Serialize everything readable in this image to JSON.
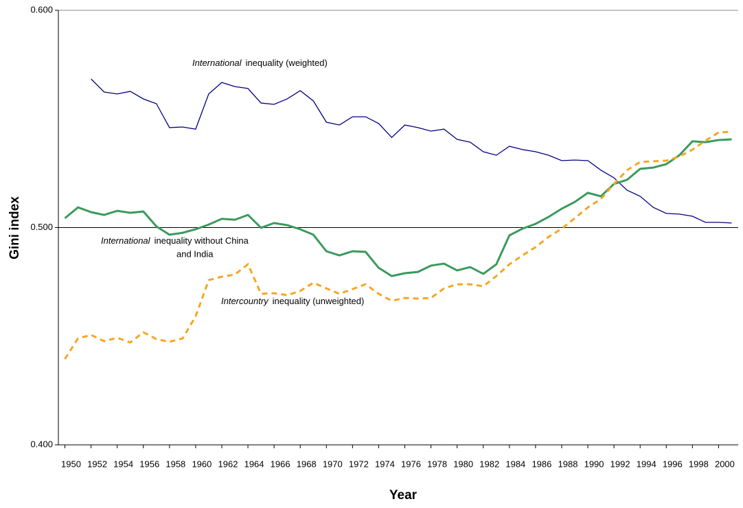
{
  "chart_data": {
    "type": "line",
    "ylabel": "Gini index",
    "xlabel": "Year",
    "x": [
      1950,
      1951,
      1952,
      1953,
      1954,
      1955,
      1956,
      1957,
      1958,
      1959,
      1960,
      1961,
      1962,
      1963,
      1964,
      1965,
      1966,
      1967,
      1968,
      1969,
      1970,
      1971,
      1972,
      1973,
      1974,
      1975,
      1976,
      1977,
      1978,
      1979,
      1980,
      1981,
      1982,
      1983,
      1984,
      1985,
      1986,
      1987,
      1988,
      1989,
      1990,
      1991,
      1992,
      1993,
      1994,
      1995,
      1996,
      1997,
      1998,
      1999,
      2000,
      2001
    ],
    "xlim": [
      1949.5,
      2001.5
    ],
    "xticks": [
      1950,
      1952,
      1954,
      1956,
      1958,
      1960,
      1962,
      1964,
      1966,
      1968,
      1970,
      1972,
      1974,
      1976,
      1978,
      1980,
      1982,
      1984,
      1986,
      1988,
      1990,
      1992,
      1994,
      1996,
      1998,
      2000
    ],
    "ylim": [
      0.4,
      0.6
    ],
    "yticks": [
      {
        "value": 0.4,
        "label": "0.400"
      },
      {
        "value": 0.5,
        "label": "0.500"
      },
      {
        "value": 0.6,
        "label": "0.600"
      }
    ],
    "grid": true,
    "series": [
      {
        "color": "#000080",
        "width": 1.3,
        "dashed": false,
        "values": [
          null,
          null,
          0.5684,
          0.5624,
          0.5615,
          0.5627,
          0.5592,
          0.557,
          0.546,
          0.5463,
          0.5453,
          0.5615,
          0.5668,
          0.5649,
          0.564,
          0.5573,
          0.5567,
          0.5592,
          0.563,
          0.5583,
          0.5485,
          0.5472,
          0.551,
          0.551,
          0.5479,
          0.5415,
          0.5472,
          0.546,
          0.5444,
          0.5453,
          0.5406,
          0.5393,
          0.5349,
          0.5333,
          0.5374,
          0.5359,
          0.5349,
          0.5333,
          0.5308,
          0.5311,
          0.5308,
          0.5264,
          0.5229,
          0.5172,
          0.5144,
          0.5093,
          0.5065,
          0.5062,
          0.5052,
          0.5024,
          0.5024,
          0.5021
        ]
      },
      {
        "color": "#3a9a5c",
        "width": 3,
        "dashed": false,
        "values": [
          0.5043,
          0.5093,
          0.5071,
          0.5058,
          0.5077,
          0.5068,
          0.5074,
          0.5005,
          0.4967,
          0.4976,
          0.4992,
          0.5014,
          0.504,
          0.5036,
          0.5058,
          0.4999,
          0.5021,
          0.5011,
          0.4992,
          0.4967,
          0.4891,
          0.4872,
          0.4891,
          0.4888,
          0.4815,
          0.4777,
          0.479,
          0.4796,
          0.4825,
          0.4834,
          0.4803,
          0.4818,
          0.4787,
          0.4831,
          0.4964,
          0.4995,
          0.5017,
          0.5049,
          0.5087,
          0.5118,
          0.516,
          0.5144,
          0.5201,
          0.522,
          0.527,
          0.5276,
          0.5292,
          0.5333,
          0.5397,
          0.5393,
          0.5403,
          0.5406
        ]
      },
      {
        "color": "#f5a623",
        "width": 3,
        "dashed": true,
        "values": [
          0.4395,
          0.449,
          0.4506,
          0.4477,
          0.4493,
          0.4471,
          0.4518,
          0.4487,
          0.4474,
          0.449,
          0.4591,
          0.4758,
          0.4774,
          0.4784,
          0.4831,
          0.4695,
          0.4698,
          0.4689,
          0.4708,
          0.4746,
          0.472,
          0.4695,
          0.4717,
          0.4739,
          0.4695,
          0.4663,
          0.4676,
          0.4673,
          0.4676,
          0.472,
          0.4739,
          0.4739,
          0.473,
          0.4777,
          0.4831,
          0.4872,
          0.491,
          0.4957,
          0.4995,
          0.5043,
          0.5093,
          0.5131,
          0.5201,
          0.5264,
          0.5302,
          0.5305,
          0.5308,
          0.5327,
          0.5359,
          0.54,
          0.5438,
          0.5441
        ]
      }
    ],
    "annotations": [
      {
        "emphasis": "International",
        "lines": [
          "inequality (weighted)"
        ]
      },
      {
        "emphasis": "International",
        "lines": [
          "inequality without China",
          "and India"
        ]
      },
      {
        "emphasis": "Intercountry",
        "lines": [
          "inequality (unweighted)"
        ]
      }
    ]
  }
}
